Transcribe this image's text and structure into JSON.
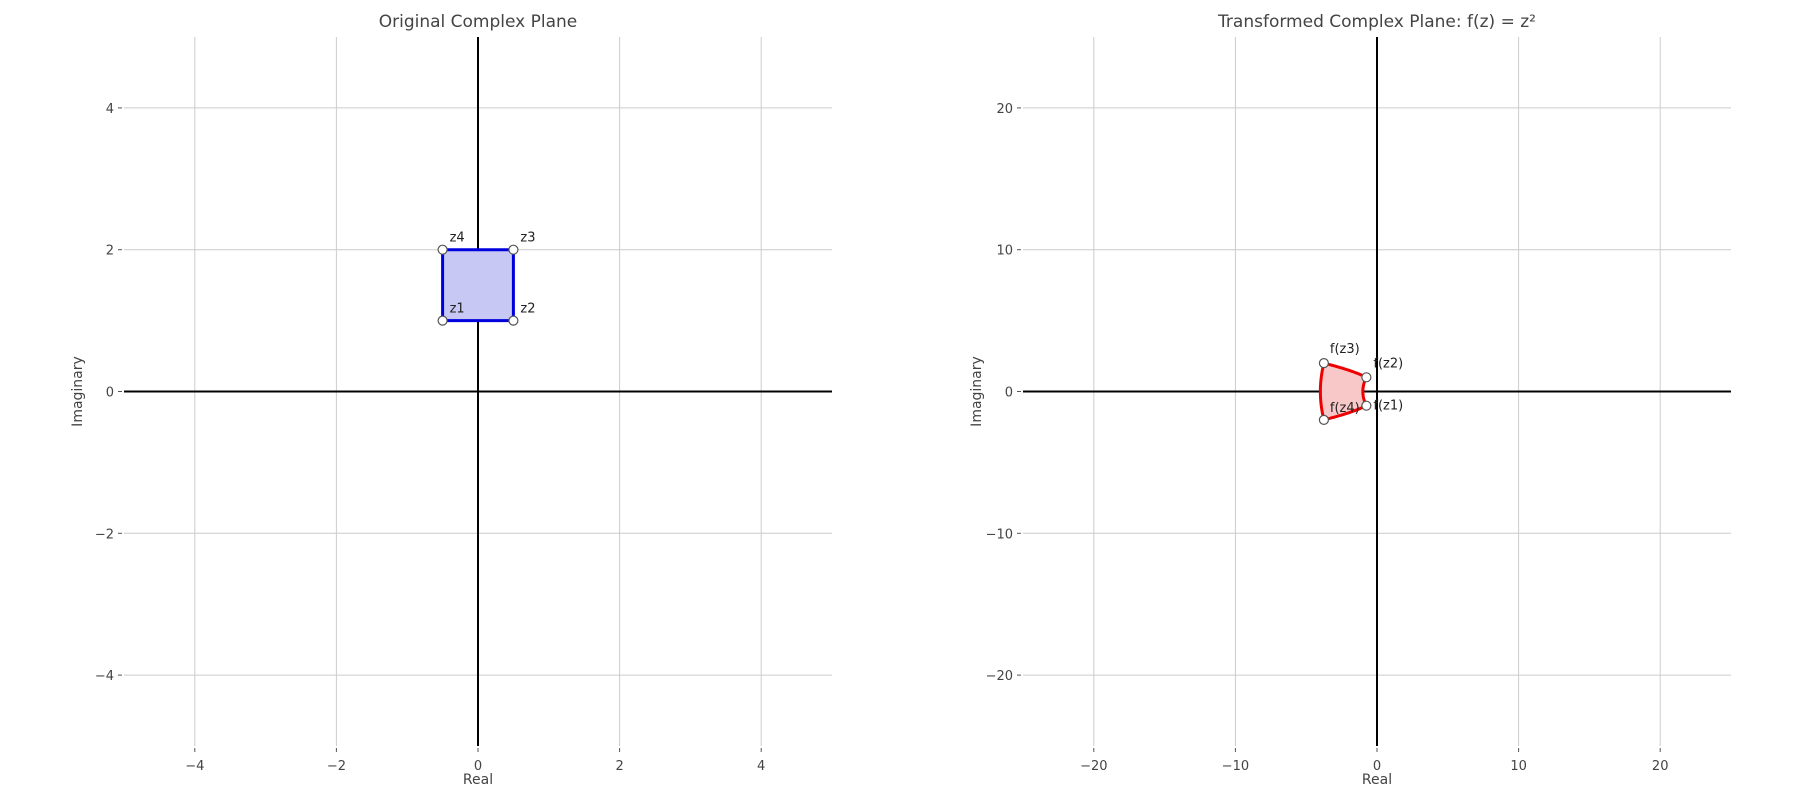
{
  "chart_data": [
    {
      "type": "line",
      "title": "Original Complex Plane",
      "xlabel": "Real",
      "ylabel": "Imaginary",
      "xlim": [
        -5,
        5
      ],
      "ylim": [
        -5,
        5
      ],
      "xticks": [
        -4,
        -2,
        0,
        2,
        4
      ],
      "yticks": [
        -4,
        -2,
        0,
        2,
        4
      ],
      "grid": true,
      "shape_color": "#0000dd",
      "fill_color": "#c8c8f4",
      "series": [
        {
          "points": [
            {
              "label": "z1",
              "x": -0.5,
              "y": 1
            },
            {
              "label": "z2",
              "x": 0.5,
              "y": 1
            },
            {
              "label": "z3",
              "x": 0.5,
              "y": 2
            },
            {
              "label": "z4",
              "x": -0.5,
              "y": 2
            }
          ]
        }
      ]
    },
    {
      "type": "line",
      "title": "Transformed Complex Plane: f(z) = z²",
      "xlabel": "Real",
      "ylabel": "Imaginary",
      "xlim": [
        -25,
        25
      ],
      "ylim": [
        -25,
        25
      ],
      "xticks": [
        -20,
        -10,
        0,
        10,
        20
      ],
      "yticks": [
        -20,
        -10,
        0,
        10,
        20
      ],
      "grid": true,
      "shape_color": "#ee0000",
      "fill_color": "#f8c8c8",
      "series": [
        {
          "points": [
            {
              "label": "f(z1)",
              "x": -0.75,
              "y": -1
            },
            {
              "label": "f(z2)",
              "x": -0.75,
              "y": 1
            },
            {
              "label": "f(z3)",
              "x": -3.75,
              "y": 2
            },
            {
              "label": "f(z4)",
              "x": -3.75,
              "y": -2
            }
          ]
        }
      ]
    }
  ]
}
